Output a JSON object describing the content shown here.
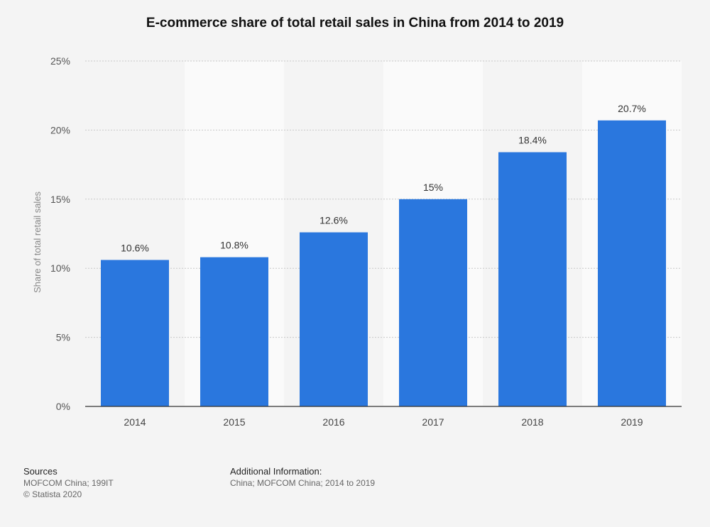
{
  "chart_data": {
    "type": "bar",
    "title": "E-commerce share of total retail sales in China from 2014 to 2019",
    "ylabel": "Share of total retail sales",
    "xlabel": "",
    "categories": [
      "2014",
      "2015",
      "2016",
      "2017",
      "2018",
      "2019"
    ],
    "values": [
      10.6,
      10.8,
      12.6,
      15,
      18.4,
      20.7
    ],
    "value_labels": [
      "10.6%",
      "10.8%",
      "12.6%",
      "15%",
      "18.4%",
      "20.7%"
    ],
    "ylim": [
      0,
      25
    ],
    "yticks": [
      0,
      5,
      10,
      15,
      20,
      25
    ],
    "ytick_labels": [
      "0%",
      "5%",
      "10%",
      "15%",
      "20%",
      "25%"
    ],
    "grid": true,
    "bar_color": "#2a77de"
  },
  "footer": {
    "sources_heading": "Sources",
    "sources_line1": "MOFCOM China; 199IT",
    "sources_line2": "© Statista 2020",
    "additional_heading": "Additional Information:",
    "additional_line": "China; MOFCOM China; 2014 to 2019"
  }
}
